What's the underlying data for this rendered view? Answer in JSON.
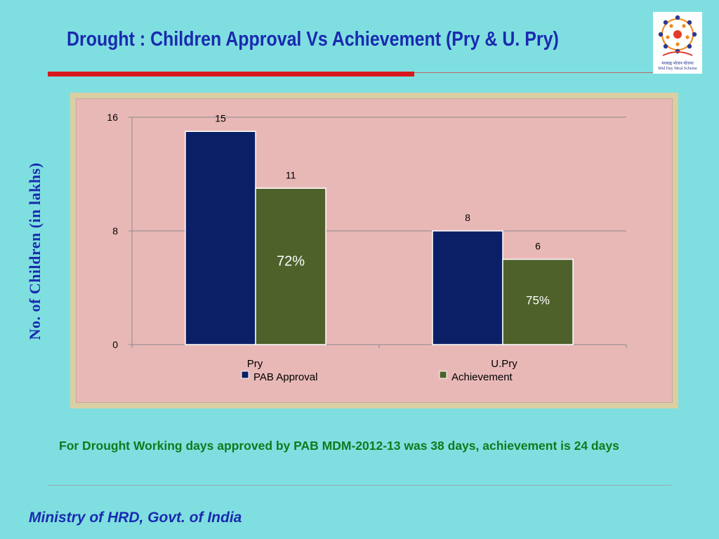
{
  "slide": {
    "title": "Drought  : Children Approval Vs Achievement (Pry & U. Pry)",
    "note": "For Drought Working days approved by PAB MDM-2012-13 was 38 days, achievement is 24 days",
    "footer": "Ministry of HRD, Govt. of India",
    "logo_text": "Mid Day Meal Scheme",
    "logo_hindi": "मध्याह्न भोजन योजना"
  },
  "chart_data": {
    "type": "bar",
    "categories": [
      "Pry",
      "U.Pry"
    ],
    "series": [
      {
        "name": "PAB Approval",
        "values": [
          15,
          8
        ],
        "color": "#0a1f66"
      },
      {
        "name": "Achievement",
        "values": [
          11,
          6
        ],
        "color": "#4e612a"
      }
    ],
    "percent_labels": [
      "72%",
      "75%"
    ],
    "ylabel": "No. of Children (in lakhs)",
    "ylim": [
      0,
      16
    ],
    "yticks": [
      0,
      8,
      16
    ],
    "grid": true,
    "legend": "bottom"
  }
}
